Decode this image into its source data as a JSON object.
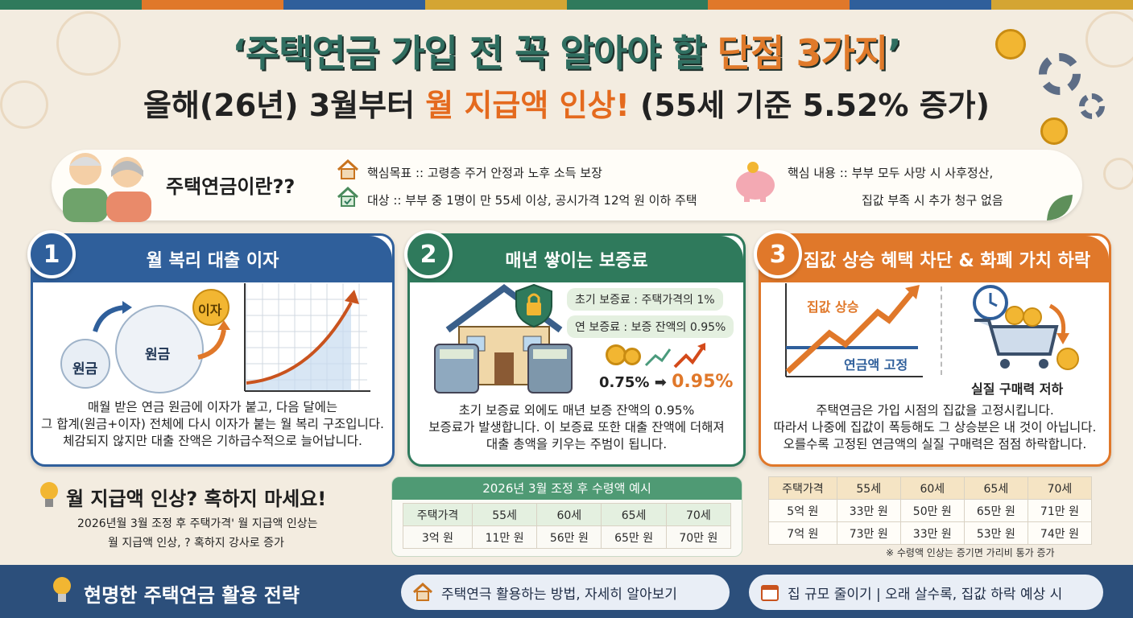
{
  "header": {
    "title_part1": "‘주택연금 가입 전 꼭 알아야 할 ",
    "title_highlight": "단점 3가지",
    "title_part2": "’",
    "subtitle_part1": "올해(26년) 3월부터 ",
    "subtitle_highlight": "월 지급액 인상!",
    "subtitle_part2": " (55세 기준 5.52% 증가)"
  },
  "colors": {
    "green": "#2f7a5c",
    "blue": "#2f5f9b",
    "orange": "#e0782a",
    "navy": "#2c4f7b"
  },
  "intro": {
    "question": "주택연금이란??",
    "goal": "핵심목표 :: 고령층 주거 안정과 노후 소득 보장",
    "target": "대상 :: 부부 중 1명이 만 55세 이상, 공시가격 12억 원 이하 주택",
    "content_line1": "핵심 내용 :: 부부  모두  사망 시 사후정산,",
    "content_line2": "집값 부족 시 추가 청구 없음"
  },
  "card1": {
    "number": "1",
    "title": "월 복리 대출 이자",
    "ball_small": "원금",
    "ball_big": "원금",
    "ball_interest": "이자",
    "text": [
      "매월 받은 연금 원금에 이자가 붙고, 다음 달에는",
      "그 합계(원금+이자) 전체에 다시 이자가 붙는 월 복리 구조입니다.",
      "체감되지 않지만 대출 잔액은 기하급수적으로 늘어납니다."
    ]
  },
  "card2": {
    "number": "2",
    "title": "매년 쌓이는 보증료",
    "label1": "초기 보증료 : 주택가격의 1%",
    "label2": "연 보증료 : 보증 잔액의 0.95%",
    "rate_from": "0.75%",
    "arrow": "➡",
    "rate_to": "0.95%",
    "text": [
      "초기 보증료 외에도 매년 보증 잔액의 0.95%",
      "보증료가 발생합니다. 이 보증료 또한 대출 잔액에 더해져",
      "대출 총액을 키우는 주범이 됩니다."
    ]
  },
  "card3": {
    "number": "3",
    "title": "집값 상승 혜택 차단 & 화폐 가치 하락",
    "rise_label": "집값 상승",
    "fixed_label": "연금액 고정",
    "cart_label": "실질 구매력 저하",
    "text": [
      "주택연금은 가입 시점의 집값을 고정시킵니다.",
      "따라서 나중에 집값이 폭등해도 그 상승분은 내 것이 아닙니다.",
      "오를수록 고정된 연금액의 실질 구매력은 점점 하락합니다."
    ]
  },
  "tip": {
    "heading": "월 지급액 인상? 혹하지 마세요!",
    "line1": "2026년월 3월 조정 후 주택가격' 월 지급액 인상는",
    "line2": "월 지급액 인상, ? 혹하지 강사로 증가"
  },
  "table_mid": {
    "caption": "2026년 3월 조정 후 수령액 예시",
    "headers": [
      "주택가격",
      "55세",
      "60세",
      "65세",
      "70세"
    ],
    "rows": [
      [
        "3억 원",
        "11만 원",
        "56만 원",
        "65만 원",
        "70만 원"
      ]
    ]
  },
  "table_right": {
    "headers": [
      "주택가격",
      "55세",
      "60세",
      "65세",
      "70세"
    ],
    "rows": [
      [
        "5억 원",
        "33만 원",
        "50만 원",
        "65만 원",
        "71만 원"
      ],
      [
        "7억 원",
        "73만 원",
        "33만 원",
        "53만 원",
        "74만 원"
      ]
    ],
    "note": "※ 수령액 인상는 증기면 가리비 통가 증가"
  },
  "bottom": {
    "strategy": "현명한 주택연금 활용 전략",
    "pill1": "주택연극 활용하는 방법, 자세히 알아보기",
    "pill2": "집 규모 줄이기 | 오래 살수록, 집값 하락 예상 시"
  }
}
